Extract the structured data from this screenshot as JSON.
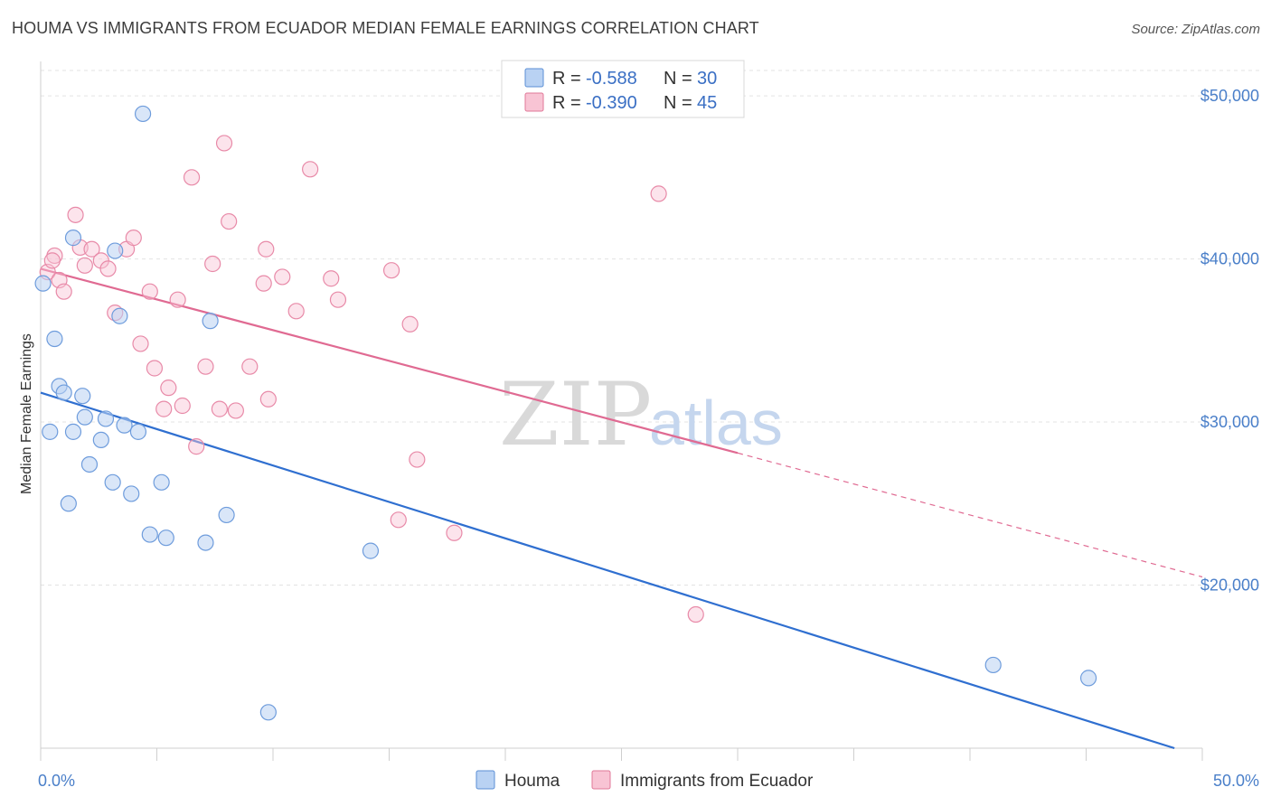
{
  "title": "HOUMA VS IMMIGRANTS FROM ECUADOR MEDIAN FEMALE EARNINGS CORRELATION CHART",
  "source": "Source: ZipAtlas.com",
  "watermark": {
    "zip": "ZIP",
    "atlas": "atlas"
  },
  "legend": {
    "r_label": "R =",
    "n_label": "N =",
    "series": [
      {
        "name": "Houma",
        "r": "-0.588",
        "n": "30",
        "color": "#5b8fd6",
        "fill": "#b9d2f3"
      },
      {
        "name": "Immigrants from Ecuador",
        "r": "-0.390",
        "n": "45",
        "color": "#e07898",
        "fill": "#f8c4d4"
      }
    ]
  },
  "chart_data": {
    "type": "scatter",
    "title": "HOUMA VS IMMIGRANTS FROM ECUADOR MEDIAN FEMALE EARNINGS CORRELATION CHART",
    "xlabel": "",
    "ylabel": "Median Female Earnings",
    "xlim": [
      0,
      50
    ],
    "ylim": [
      10000,
      52000
    ],
    "x_tick_labels": [
      "0.0%",
      "50.0%"
    ],
    "y_ticks": [
      20000,
      30000,
      40000,
      50000
    ],
    "y_tick_labels": [
      "$20,000",
      "$30,000",
      "$40,000",
      "$50,000"
    ],
    "grid": true,
    "series": [
      {
        "name": "Houma",
        "points": [
          [
            0.1,
            38500
          ],
          [
            0.6,
            35100
          ],
          [
            0.8,
            32200
          ],
          [
            1.0,
            31800
          ],
          [
            1.8,
            31600
          ],
          [
            1.9,
            30300
          ],
          [
            2.8,
            30200
          ],
          [
            3.6,
            29800
          ],
          [
            1.4,
            29400
          ],
          [
            0.4,
            29400
          ],
          [
            4.2,
            29400
          ],
          [
            2.6,
            28900
          ],
          [
            2.1,
            27400
          ],
          [
            3.1,
            26300
          ],
          [
            5.2,
            26300
          ],
          [
            1.2,
            25000
          ],
          [
            3.9,
            25600
          ],
          [
            4.7,
            23100
          ],
          [
            5.4,
            22900
          ],
          [
            7.1,
            22600
          ],
          [
            8.0,
            24300
          ],
          [
            14.2,
            22100
          ],
          [
            1.4,
            41300
          ],
          [
            3.2,
            40500
          ],
          [
            3.4,
            36500
          ],
          [
            7.3,
            36200
          ],
          [
            4.4,
            48900
          ],
          [
            9.8,
            12200
          ],
          [
            41.0,
            15100
          ],
          [
            45.1,
            14300
          ]
        ],
        "trend": {
          "x": [
            0,
            48.8
          ],
          "y": [
            31800,
            10000
          ],
          "dashed_x": []
        }
      },
      {
        "name": "Immigrants from Ecuador",
        "points": [
          [
            0.3,
            39200
          ],
          [
            0.6,
            40200
          ],
          [
            0.8,
            38700
          ],
          [
            1.0,
            38000
          ],
          [
            1.5,
            42700
          ],
          [
            1.7,
            40700
          ],
          [
            1.9,
            39600
          ],
          [
            2.2,
            40600
          ],
          [
            2.6,
            39900
          ],
          [
            2.9,
            39400
          ],
          [
            3.2,
            36700
          ],
          [
            3.7,
            40600
          ],
          [
            4.0,
            41300
          ],
          [
            4.3,
            34800
          ],
          [
            4.7,
            38000
          ],
          [
            4.9,
            33300
          ],
          [
            5.3,
            30800
          ],
          [
            5.5,
            32100
          ],
          [
            5.9,
            37500
          ],
          [
            6.1,
            31000
          ],
          [
            6.5,
            45000
          ],
          [
            6.7,
            28500
          ],
          [
            7.1,
            33400
          ],
          [
            7.4,
            39700
          ],
          [
            7.7,
            30800
          ],
          [
            7.9,
            47100
          ],
          [
            8.1,
            42300
          ],
          [
            8.4,
            30700
          ],
          [
            9.0,
            33400
          ],
          [
            9.6,
            38500
          ],
          [
            9.7,
            40600
          ],
          [
            9.8,
            31400
          ],
          [
            10.4,
            38900
          ],
          [
            11.0,
            36800
          ],
          [
            11.6,
            45500
          ],
          [
            12.5,
            38800
          ],
          [
            12.8,
            37500
          ],
          [
            15.1,
            39300
          ],
          [
            15.4,
            24000
          ],
          [
            15.9,
            36000
          ],
          [
            16.2,
            27700
          ],
          [
            17.8,
            23200
          ],
          [
            26.6,
            44000
          ],
          [
            28.2,
            18200
          ],
          [
            0.5,
            39900
          ]
        ],
        "trend": {
          "x": [
            0,
            30.0
          ],
          "y": [
            39400,
            28100
          ],
          "dashed_x": [
            30.0,
            50.0
          ],
          "dashed_y": [
            28100,
            20500
          ]
        }
      }
    ]
  }
}
